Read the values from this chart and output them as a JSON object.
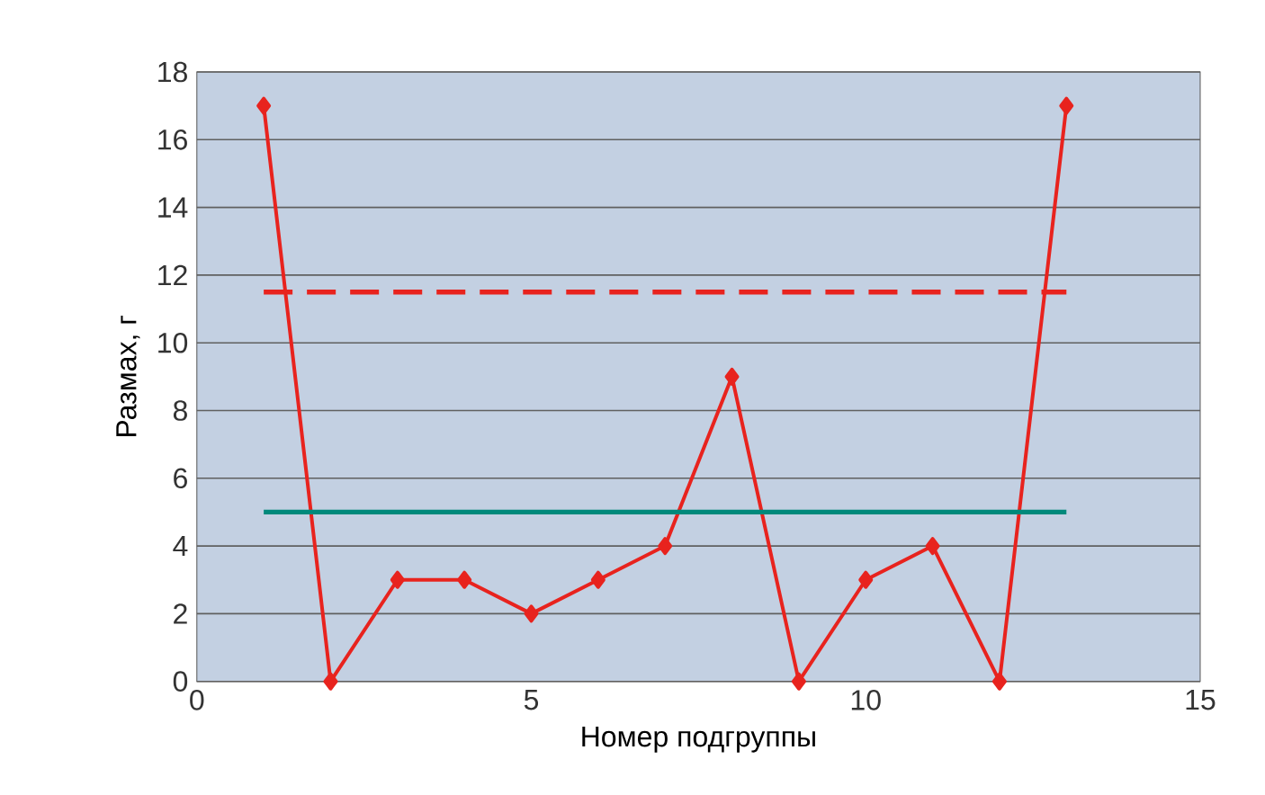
{
  "chart_data": {
    "type": "line",
    "xlabel": "Номер подгруппы",
    "ylabel": "Размах, г",
    "x": [
      1,
      2,
      3,
      4,
      5,
      6,
      7,
      8,
      9,
      10,
      11,
      12,
      13
    ],
    "series": [
      {
        "color": "#e8231e",
        "values": [
          17,
          0,
          3,
          3,
          2,
          3,
          4,
          9,
          0,
          3,
          4,
          0,
          17
        ]
      }
    ],
    "xlim": [
      0,
      15
    ],
    "xticks": [
      0,
      5,
      10,
      15
    ],
    "ylim": [
      0,
      18
    ],
    "yticks": [
      0,
      2,
      4,
      6,
      8,
      10,
      12,
      14,
      16,
      18
    ],
    "grid": "y",
    "marker": "diamond",
    "line_style": "solid",
    "ref_lines": [
      {
        "axis": "y",
        "value": 11.5,
        "color": "#e8231e",
        "line_style": "dashed"
      },
      {
        "axis": "y",
        "value": 5,
        "color": "#00897b",
        "line_style": "solid"
      }
    ]
  }
}
